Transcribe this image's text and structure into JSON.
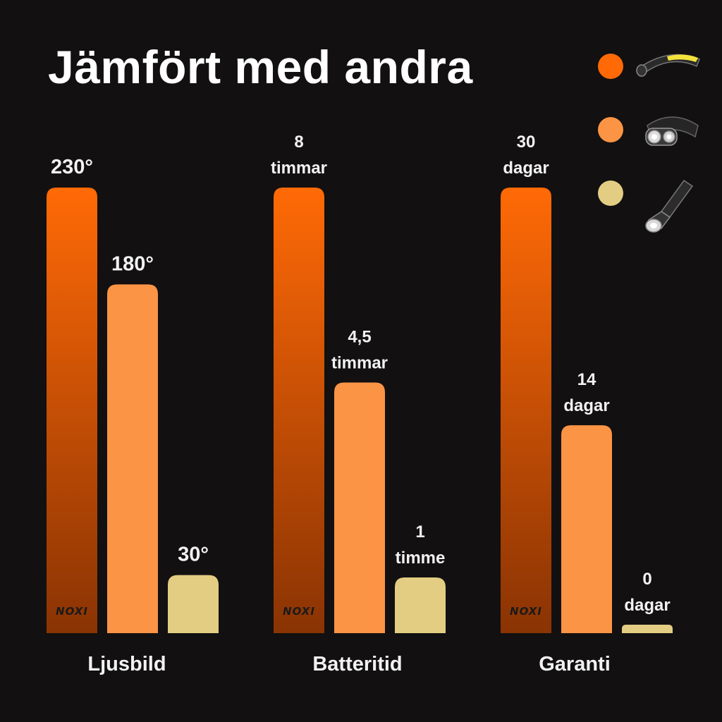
{
  "title": "Jämfört med andra",
  "colors": {
    "background": "#121010",
    "series_1_top": "#ff6a06",
    "series_1_bottom": "#8a3304",
    "series_2": "#fc9445",
    "series_3": "#e3cd83",
    "text": "#f2f2f2"
  },
  "chart_data": {
    "type": "bar",
    "title": "Jämfört med andra",
    "legend_position": "top-right",
    "grid": false,
    "groups": [
      {
        "category": "Ljusbild",
        "values": [
          230,
          180,
          30
        ],
        "labels": [
          [
            "230°"
          ],
          [
            "180°"
          ],
          [
            "30°"
          ]
        ],
        "ylim": [
          0,
          230
        ]
      },
      {
        "category": "Batteritid",
        "values": [
          8,
          4.5,
          1
        ],
        "labels": [
          [
            "8",
            "timmar"
          ],
          [
            "4,5",
            "timmar"
          ],
          [
            "1",
            "timme"
          ]
        ],
        "ylim": [
          0,
          8
        ]
      },
      {
        "category": "Garanti",
        "values": [
          30,
          14,
          0
        ],
        "labels": [
          [
            "30",
            "dagar"
          ],
          [
            "14",
            "dagar"
          ],
          [
            "0",
            "dagar"
          ]
        ],
        "ylim": [
          0,
          30
        ]
      }
    ],
    "bar_brand_text": "NOXI",
    "legend": [
      {
        "icon": "led-strip-headlamp-icon",
        "color": "#ff6a06"
      },
      {
        "icon": "dual-lamp-headlamp-icon",
        "color": "#fc9445"
      },
      {
        "icon": "flashlight-icon",
        "color": "#e3cd83"
      }
    ]
  }
}
